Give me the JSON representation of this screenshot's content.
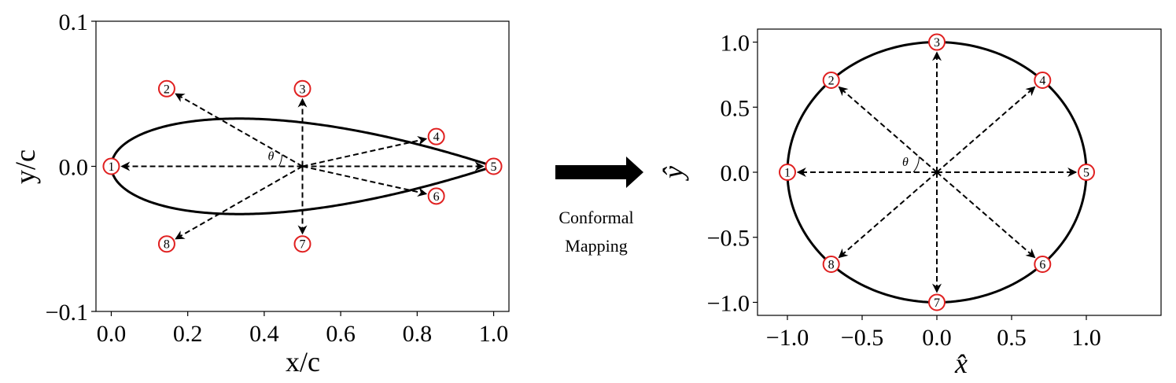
{
  "left_plot": {
    "xlabel": "x/c",
    "ylabel": "y/c",
    "xlim": [
      -0.04,
      1.04
    ],
    "ylim": [
      -0.1,
      0.1
    ],
    "x_ticks": [
      {
        "value": 0.0,
        "label": "0.0"
      },
      {
        "value": 0.2,
        "label": "0.2"
      },
      {
        "value": 0.4,
        "label": "0.4"
      },
      {
        "value": 0.6,
        "label": "0.6"
      },
      {
        "value": 0.8,
        "label": "0.8"
      },
      {
        "value": 1.0,
        "label": "1.0"
      }
    ],
    "y_ticks": [
      {
        "value": 0.1,
        "label": "0.1"
      },
      {
        "value": 0.0,
        "label": "0.0"
      },
      {
        "value": -0.1,
        "label": "−0.1"
      }
    ],
    "center": [
      0.5,
      0.0
    ],
    "theta_label": "θ",
    "points": [
      {
        "id": "1",
        "x": 0.0,
        "y": 0.0
      },
      {
        "id": "2",
        "x": 0.145,
        "y": 0.0535
      },
      {
        "id": "3",
        "x": 0.5,
        "y": 0.0535
      },
      {
        "id": "4",
        "x": 0.85,
        "y": 0.0205
      },
      {
        "id": "5",
        "x": 1.0,
        "y": 0.0
      },
      {
        "id": "6",
        "x": 0.85,
        "y": -0.0205
      },
      {
        "id": "7",
        "x": 0.5,
        "y": -0.0535
      },
      {
        "id": "8",
        "x": 0.145,
        "y": -0.0535
      }
    ]
  },
  "arrow": {
    "line1": "Conformal",
    "line2": "Mapping"
  },
  "right_plot": {
    "xlabel": "x̂",
    "ylabel": "ŷ",
    "xlim": [
      -1.2,
      1.5
    ],
    "ylim": [
      -1.1,
      1.1
    ],
    "x_ticks": [
      {
        "value": -1.0,
        "label": "−1.0"
      },
      {
        "value": -0.5,
        "label": "−0.5"
      },
      {
        "value": 0.0,
        "label": "0.0"
      },
      {
        "value": 0.5,
        "label": "0.5"
      },
      {
        "value": 1.0,
        "label": "1.0"
      }
    ],
    "y_ticks": [
      {
        "value": 1.0,
        "label": "1.0"
      },
      {
        "value": 0.5,
        "label": "0.5"
      },
      {
        "value": 0.0,
        "label": "0.0"
      },
      {
        "value": -0.5,
        "label": "−0.5"
      },
      {
        "value": -1.0,
        "label": "−1.0"
      }
    ],
    "radius": 1.0,
    "theta_label": "θ",
    "points": [
      {
        "id": "1",
        "x": -1.0,
        "y": 0.0
      },
      {
        "id": "2",
        "x": -0.707,
        "y": 0.707
      },
      {
        "id": "3",
        "x": 0.0,
        "y": 1.0
      },
      {
        "id": "4",
        "x": 0.707,
        "y": 0.707
      },
      {
        "id": "5",
        "x": 1.0,
        "y": 0.0
      },
      {
        "id": "6",
        "x": 0.707,
        "y": -0.707
      },
      {
        "id": "7",
        "x": 0.0,
        "y": -1.0
      },
      {
        "id": "8",
        "x": -0.707,
        "y": -0.707
      }
    ]
  },
  "colors": {
    "curve": "#000000",
    "marker_edge": "#e02020",
    "marker_fill": "#ffffff",
    "arrow": "#000000"
  }
}
